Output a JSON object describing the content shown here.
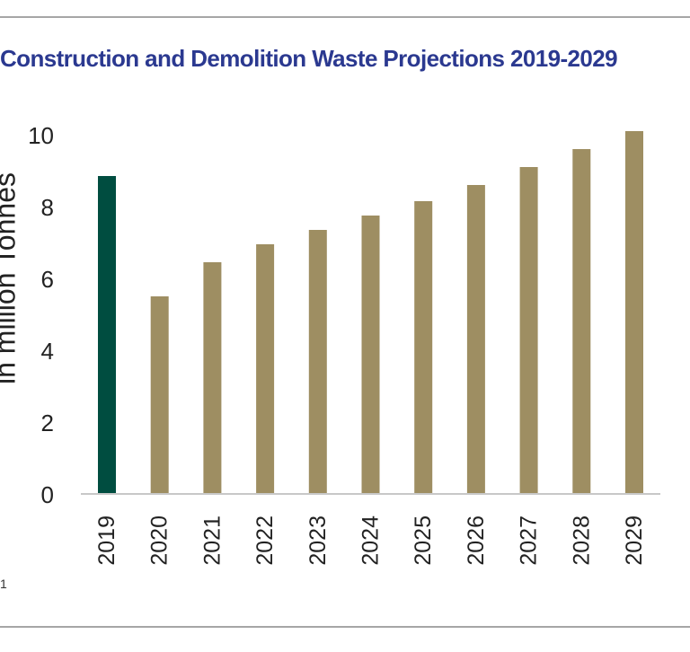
{
  "title": "Construction and Demolition Waste Projections 2019-2029",
  "page_mark": "1",
  "chart_data": {
    "type": "bar",
    "title": "Construction and Demolition Waste Projections 2019-2029",
    "ylabel": "in million Tonnes",
    "xlabel": "",
    "ylim": [
      0,
      10
    ],
    "yticks": [
      0,
      2,
      4,
      6,
      8,
      10
    ],
    "categories": [
      "2019",
      "2020",
      "2021",
      "2022",
      "2023",
      "2024",
      "2025",
      "2026",
      "2027",
      "2028",
      "2029"
    ],
    "values": [
      8.85,
      5.5,
      6.45,
      6.95,
      7.35,
      7.75,
      8.15,
      8.6,
      9.1,
      9.6,
      10.1
    ],
    "colors": [
      "#004d40",
      "#9e8e62",
      "#9e8e62",
      "#9e8e62",
      "#9e8e62",
      "#9e8e62",
      "#9e8e62",
      "#9e8e62",
      "#9e8e62",
      "#9e8e62",
      "#9e8e62"
    ],
    "grid": false,
    "legend": "none"
  }
}
